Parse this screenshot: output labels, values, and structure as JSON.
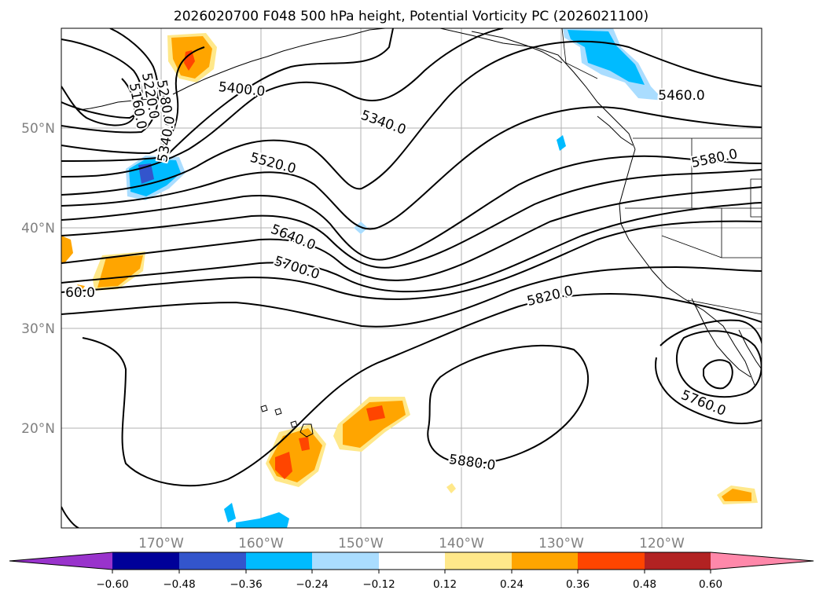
{
  "title": "2026020700 F048 500 hPa height, Potential Vorticity PC (2026021100)",
  "lat_labels": [
    "50°N",
    "40°N",
    "30°N",
    "20°N"
  ],
  "lon_labels": [
    "170°W",
    "160°W",
    "150°W",
    "140°W",
    "130°W",
    "120°W"
  ],
  "contour_labels": [
    "5400.0",
    "5340.0",
    "5460.0",
    "5520.0",
    "5580.0",
    "5640.0",
    "5700.0",
    "5820.0",
    "5760.0",
    "5880.0",
    "5160.0",
    "5280.0",
    "5340.0",
    "60.0",
    "5220.0"
  ],
  "colorbar": {
    "ticks": [
      "−0.60",
      "−0.48",
      "−0.36",
      "−0.24",
      "−0.12",
      "0.12",
      "0.24",
      "0.36",
      "0.48",
      "0.60"
    ],
    "colors": [
      "#9933cc",
      "#000099",
      "#3355cc",
      "#00bbff",
      "#aaddff",
      "#ffffff",
      "#ffe88a",
      "#ffa500",
      "#ff4500",
      "#b22222",
      "#ff88aa"
    ]
  },
  "colors": {
    "pv_pos_light": "#ffe88a",
    "pv_pos_mid": "#ffa500",
    "pv_pos_high": "#ff4500",
    "pv_neg_light": "#aaddff",
    "pv_neg_mid": "#00bbff",
    "pv_neg_high": "#3355cc",
    "grid": "#b0b0b0",
    "contour": "#000000"
  }
}
